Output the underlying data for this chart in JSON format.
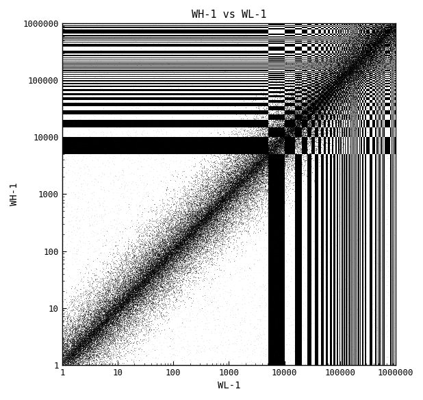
{
  "title": "WH-1 vs WL-1",
  "xlabel": "WL-1",
  "ylabel": "WH-1",
  "xlim": [
    1,
    1000000
  ],
  "ylim": [
    1,
    1000000
  ],
  "figure_bg_color": "#ffffff",
  "n_points": 50000,
  "seed": 42,
  "title_fontsize": 11,
  "label_fontsize": 10,
  "tick_fontsize": 9,
  "font_family": "monospace",
  "noise_sigma": 0.3,
  "n_extra_layers": 3
}
